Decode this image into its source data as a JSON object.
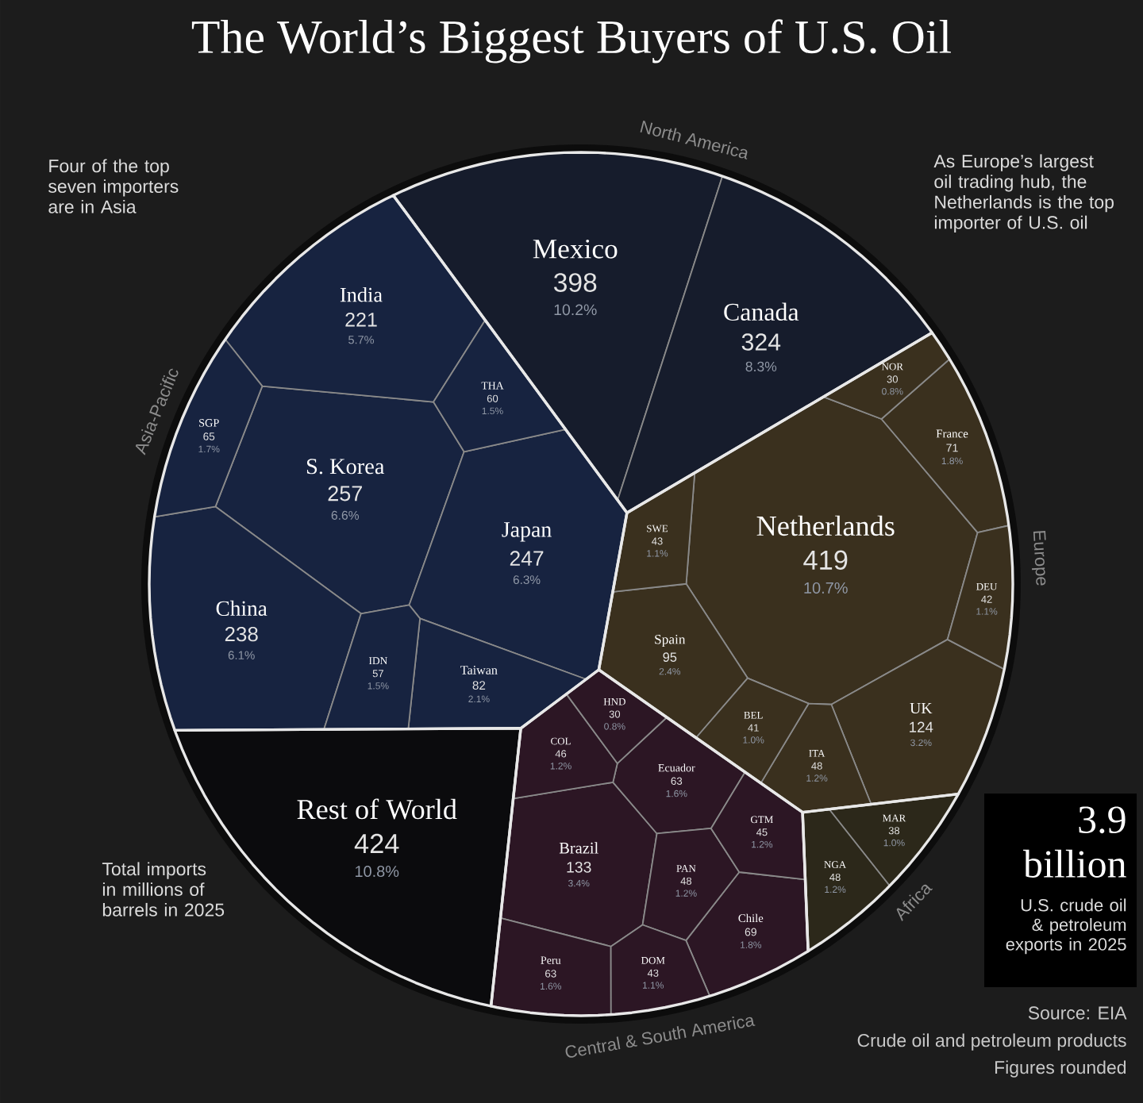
{
  "chart_data": {
    "type": "other",
    "title": "The World’s Biggest Buyers of U.S. Oil",
    "categories": [
      "Mexico",
      "Canada",
      "Netherlands",
      "UK",
      "Spain",
      "France",
      "ITA",
      "SWE",
      "DEU",
      "BEL",
      "NOR",
      "NGA",
      "MAR",
      "Brazil",
      "Chile",
      "Peru",
      "Ecuador",
      "PAN",
      "COL",
      "GTM",
      "DOM",
      "HND",
      "Rest of World",
      "S. Korea",
      "Japan",
      "China",
      "India",
      "Taiwan",
      "SGP",
      "THA",
      "IDN"
    ],
    "series": [
      {
        "name": "North America",
        "color": "#161c2c",
        "values": [
          398,
          324,
          null,
          null,
          null,
          null,
          null,
          null,
          null,
          null,
          null,
          null,
          null,
          null,
          null,
          null,
          null,
          null,
          null,
          null,
          null,
          null,
          null,
          null,
          null,
          null,
          null,
          null,
          null,
          null,
          null
        ]
      },
      {
        "name": "Europe",
        "color": "#3a301e",
        "values": [
          null,
          null,
          419,
          124,
          95,
          71,
          48,
          43,
          42,
          41,
          30,
          null,
          null,
          null,
          null,
          null,
          null,
          null,
          null,
          null,
          null,
          null,
          null,
          null,
          null,
          null,
          null,
          null,
          null,
          null,
          null
        ]
      },
      {
        "name": "Africa",
        "color": "#2c281a",
        "values": [
          null,
          null,
          null,
          null,
          null,
          null,
          null,
          null,
          null,
          null,
          null,
          48,
          38,
          null,
          null,
          null,
          null,
          null,
          null,
          null,
          null,
          null,
          null,
          null,
          null,
          null,
          null,
          null,
          null,
          null,
          null
        ]
      },
      {
        "name": "Central & South America",
        "color": "#2c1624",
        "values": [
          null,
          null,
          null,
          null,
          null,
          null,
          null,
          null,
          null,
          null,
          null,
          null,
          null,
          133,
          69,
          63,
          63,
          48,
          46,
          45,
          43,
          30,
          null,
          null,
          null,
          null,
          null,
          null,
          null,
          null,
          null
        ]
      },
      {
        "color": "#0b0b0d",
        "values": [
          null,
          null,
          null,
          null,
          null,
          null,
          null,
          null,
          null,
          null,
          null,
          null,
          null,
          null,
          null,
          null,
          null,
          null,
          null,
          null,
          null,
          null,
          424,
          null,
          null,
          null,
          null,
          null,
          null,
          null,
          null
        ]
      },
      {
        "name": "Asia-Pacific",
        "color": "#172340",
        "values": [
          null,
          null,
          null,
          null,
          null,
          null,
          null,
          null,
          null,
          null,
          null,
          null,
          null,
          null,
          null,
          null,
          null,
          null,
          null,
          null,
          null,
          null,
          null,
          257,
          247,
          238,
          221,
          82,
          65,
          60,
          57
        ]
      }
    ],
    "data_labels": true,
    "annotations": [
      "Four of the top seven importers are in Asia",
      "As Europe’s largest oil trading hub, the Netherlands is the top importer of U.S. oil",
      "Total imports in millions of barrels in 2025",
      "3.9 billion",
      "U.S. crude oil & petroleum exports in 2025",
      "Source: EIA",
      "Crude oil and petroleum products",
      "Figures rounded",
      {
        "text": "10.2%",
        "x": "Mexico"
      },
      {
        "text": "8.3%",
        "x": "Canada"
      },
      {
        "text": "10.7%",
        "x": "Netherlands"
      },
      {
        "text": "3.2%",
        "x": "UK"
      },
      {
        "text": "2.4%",
        "x": "Spain"
      },
      {
        "text": "1.8%",
        "x": "France"
      },
      {
        "text": "1.2%",
        "x": "ITA"
      },
      {
        "text": "1.1%",
        "x": "SWE"
      },
      {
        "text": "1.1%",
        "x": "DEU"
      },
      {
        "text": "1.0%",
        "x": "BEL"
      },
      {
        "text": "0.8%",
        "x": "NOR"
      },
      {
        "text": "1.2%",
        "x": "NGA"
      },
      {
        "text": "1.0%",
        "x": "MAR"
      },
      {
        "text": "3.4%",
        "x": "Brazil"
      },
      {
        "text": "1.8%",
        "x": "Chile"
      },
      {
        "text": "1.6%",
        "x": "Peru"
      },
      {
        "text": "1.6%",
        "x": "Ecuador"
      },
      {
        "text": "1.2%",
        "x": "PAN"
      },
      {
        "text": "1.2%",
        "x": "COL"
      },
      {
        "text": "1.2%",
        "x": "GTM"
      },
      {
        "text": "1.1%",
        "x": "DOM"
      },
      {
        "text": "0.8%",
        "x": "HND"
      },
      {
        "text": "10.8%",
        "x": "Rest of World"
      },
      {
        "text": "6.6%",
        "x": "S. Korea"
      },
      {
        "text": "6.3%",
        "x": "Japan"
      },
      {
        "text": "6.1%",
        "x": "China"
      },
      {
        "text": "5.7%",
        "x": "India"
      },
      {
        "text": "2.1%",
        "x": "Taiwan"
      },
      {
        "text": "1.7%",
        "x": "SGP"
      },
      {
        "text": "1.5%",
        "x": "THA"
      },
      {
        "text": "1.5%",
        "x": "IDN"
      }
    ]
  }
}
